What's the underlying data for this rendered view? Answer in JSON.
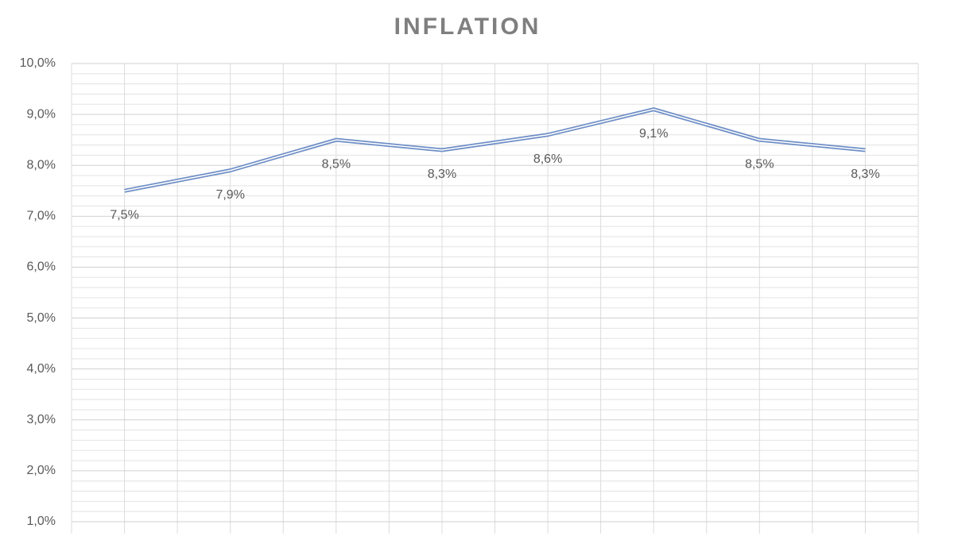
{
  "chart_data": {
    "type": "line",
    "title": "INFLATION",
    "categories": [
      null,
      null,
      null,
      null,
      null,
      null,
      null,
      null
    ],
    "series": [
      {
        "color": "#6f8fc6",
        "values": [
          7.5,
          7.9,
          8.5,
          8.3,
          8.6,
          9.1,
          8.5,
          8.3
        ],
        "value_labels": [
          "7,5%",
          "7,9%",
          "8,5%",
          "8,3%",
          "8,6%",
          "9,1%",
          "8,5%",
          "8,3%"
        ]
      }
    ],
    "ylim": [
      1,
      10
    ],
    "yticks": [
      {
        "value": 1,
        "label": "1,0%"
      },
      {
        "value": 2,
        "label": "2,0%"
      },
      {
        "value": 3,
        "label": "3,0%"
      },
      {
        "value": 4,
        "label": "4,0%"
      },
      {
        "value": 5,
        "label": "5,0%"
      },
      {
        "value": 6,
        "label": "6,0%"
      },
      {
        "value": 7,
        "label": "7,0%"
      },
      {
        "value": 8,
        "label": "8,0%"
      },
      {
        "value": 9,
        "label": "9,0%"
      },
      {
        "value": 10,
        "label": "10,0%"
      }
    ],
    "grid": true
  }
}
